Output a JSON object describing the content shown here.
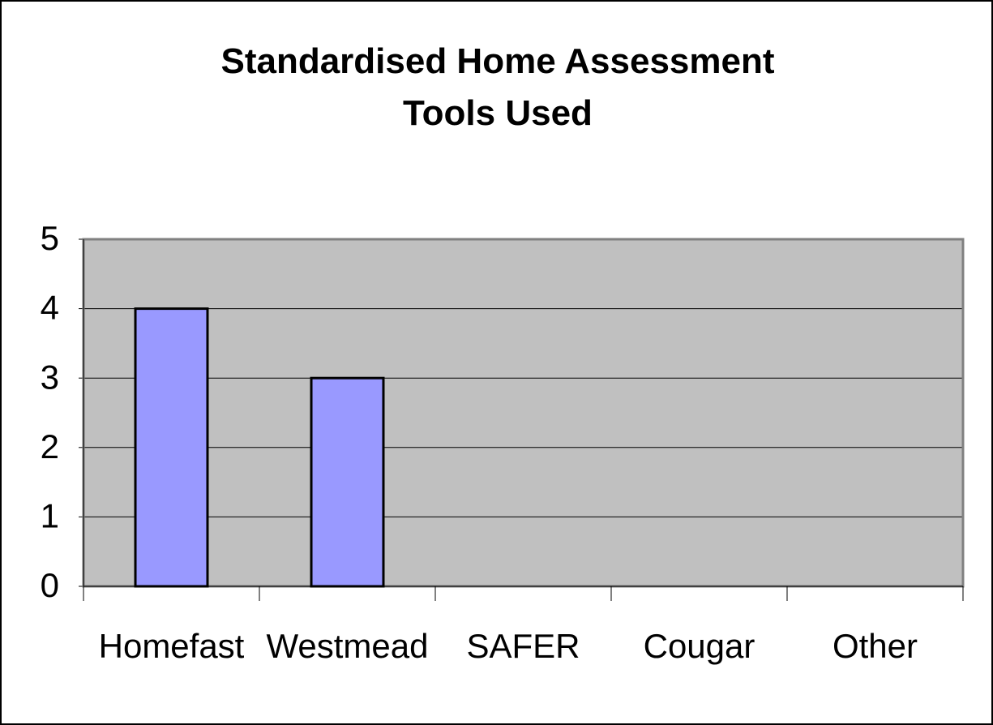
{
  "chart_data": {
    "type": "bar",
    "title": "Standardised Home Assessment Tools Used",
    "categories": [
      "Homefast",
      "Westmead",
      "SAFER",
      "Cougar",
      "Other"
    ],
    "values": [
      4,
      3,
      0,
      0,
      0
    ],
    "color": "#9999ff",
    "ylim": [
      0,
      5
    ],
    "yticks": [
      0,
      1,
      2,
      3,
      4,
      5
    ],
    "grid": true
  }
}
